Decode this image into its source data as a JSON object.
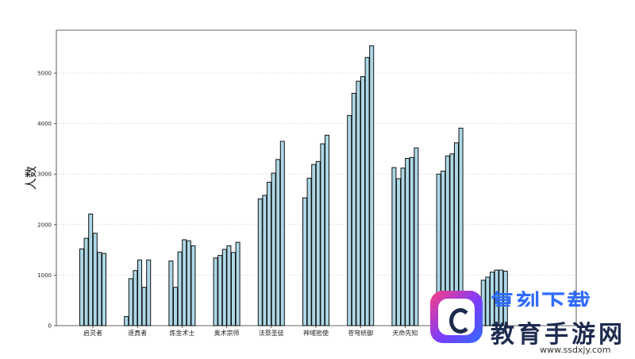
{
  "chart_data": {
    "type": "bar",
    "title": "",
    "xlabel": "",
    "ylabel": "人数",
    "ylim": [
      0,
      5850
    ],
    "yticks": [
      0,
      1000,
      2000,
      3000,
      4000,
      5000
    ],
    "grid": true,
    "bar_color": "#add8e6",
    "edge_color": "#111111",
    "categories": [
      "启灵者",
      "逐真者",
      "炼金术士",
      "奥术宗师",
      "法祭圣徒",
      "神域密使",
      "苍穹统御",
      "天命先知",
      "",
      ""
    ],
    "series_values": [
      [
        1520,
        1730,
        2210,
        1830,
        1450,
        1430
      ],
      [
        180,
        930,
        1090,
        1300,
        760,
        1300
      ],
      [
        1280,
        760,
        1460,
        1700,
        1680,
        1580
      ],
      [
        1340,
        1390,
        1510,
        1580,
        1450,
        1650
      ],
      [
        2510,
        2580,
        2840,
        3020,
        3290,
        3650
      ],
      [
        2530,
        2920,
        3190,
        3250,
        3600,
        3770
      ],
      [
        4160,
        4600,
        4840,
        4930,
        5310,
        5540
      ],
      [
        3130,
        2910,
        3120,
        3310,
        3330,
        3520
      ],
      [
        3000,
        3060,
        3360,
        3400,
        3620,
        3910
      ],
      [
        900,
        960,
        1060,
        1100,
        1100,
        1080
      ]
    ]
  },
  "watermark": {
    "top_text": "复刻下载",
    "title": "教育手游网",
    "url": "www.ssdxjy.com"
  }
}
